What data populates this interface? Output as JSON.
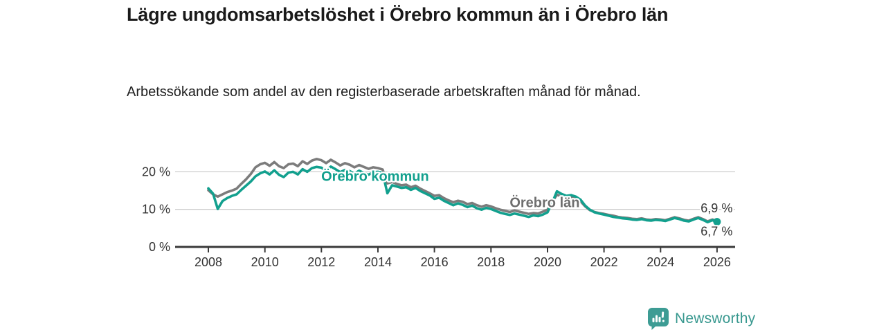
{
  "header": {
    "title": "Lägre ungdomsarbetslöshet i Örebro kommun än i Örebro län",
    "subtitle": "Arbetssökande som andel av den registerbaserade arbetskraften månad för månad."
  },
  "chart_data": {
    "type": "line",
    "title": "Lägre ungdomsarbetslöshet i Örebro kommun än i Örebro län",
    "xlabel": "",
    "ylabel": "",
    "x_start": 2008,
    "points_per_year": 6,
    "x_end": 2026,
    "ylim": [
      0,
      24
    ],
    "grid": "horizontal",
    "axis_color": "#3a3a3a",
    "grid_color": "#cccccc",
    "tick_label_color": "#333333",
    "yticks": [
      {
        "value": 0,
        "label": "0 %"
      },
      {
        "value": 10,
        "label": "10 %"
      },
      {
        "value": 20,
        "label": "20 %"
      }
    ],
    "xticks": [
      {
        "value": 2008,
        "label": "2008"
      },
      {
        "value": 2010,
        "label": "2010"
      },
      {
        "value": 2012,
        "label": "2012"
      },
      {
        "value": 2014,
        "label": "2014"
      },
      {
        "value": 2016,
        "label": "2016"
      },
      {
        "value": 2018,
        "label": "2018"
      },
      {
        "value": 2020,
        "label": "2020"
      },
      {
        "value": 2022,
        "label": "2022"
      },
      {
        "value": 2024,
        "label": "2024"
      },
      {
        "value": 2026,
        "label": "2026"
      }
    ],
    "series": [
      {
        "name": "Örebro län",
        "color": "#7c7c7c",
        "end_value": 6.9,
        "end_value_label": "6,9 %",
        "values": [
          15.1,
          14.0,
          13.4,
          14.0,
          14.6,
          15.0,
          15.5,
          16.8,
          18.0,
          19.4,
          21.2,
          22.0,
          22.4,
          21.6,
          22.6,
          21.5,
          21.0,
          22.0,
          22.2,
          21.5,
          22.8,
          22.1,
          23.0,
          23.4,
          23.1,
          22.3,
          23.2,
          22.5,
          21.7,
          22.3,
          21.9,
          21.2,
          21.8,
          21.3,
          20.8,
          21.2,
          21.0,
          20.6,
          16.9,
          17.3,
          16.8,
          16.4,
          16.6,
          15.9,
          16.3,
          15.5,
          14.9,
          14.3,
          13.6,
          13.8,
          13.0,
          12.4,
          11.9,
          12.3,
          12.0,
          11.4,
          11.7,
          11.1,
          10.7,
          11.1,
          10.8,
          10.3,
          9.9,
          9.6,
          9.3,
          9.7,
          9.4,
          9.1,
          8.8,
          9.0,
          8.9,
          9.4,
          9.9,
          12.0,
          13.9,
          13.4,
          13.0,
          13.2,
          12.9,
          12.2,
          10.8,
          9.8,
          9.3,
          9.0,
          8.8,
          8.5,
          8.3,
          8.0,
          7.8,
          7.7,
          7.5,
          7.4,
          7.6,
          7.3,
          7.2,
          7.4,
          7.3,
          7.1,
          7.5,
          7.9,
          7.6,
          7.2,
          7.0,
          7.5,
          7.9,
          7.4,
          6.8,
          7.3,
          6.9
        ]
      },
      {
        "name": "Örebro kommun",
        "color": "#12a08e",
        "end_value": 6.7,
        "end_value_label": "6,7 %",
        "values": [
          15.6,
          14.2,
          10.1,
          12.2,
          13.0,
          13.6,
          14.0,
          15.2,
          16.3,
          17.4,
          18.8,
          19.6,
          20.1,
          19.3,
          20.4,
          19.2,
          18.6,
          19.8,
          20.0,
          19.3,
          20.7,
          20.0,
          21.0,
          21.3,
          21.1,
          20.3,
          21.4,
          20.7,
          19.9,
          20.5,
          20.2,
          19.5,
          20.3,
          19.7,
          19.2,
          19.9,
          20.0,
          19.7,
          14.3,
          16.4,
          16.1,
          15.7,
          15.9,
          15.2,
          15.7,
          14.9,
          14.3,
          13.7,
          12.8,
          13.1,
          12.3,
          11.7,
          11.1,
          11.6,
          11.2,
          10.6,
          11.0,
          10.3,
          9.9,
          10.4,
          10.1,
          9.6,
          9.1,
          8.8,
          8.5,
          8.9,
          8.6,
          8.3,
          8.0,
          8.4,
          8.2,
          8.6,
          9.2,
          11.8,
          14.8,
          14.1,
          13.6,
          13.8,
          13.4,
          12.6,
          11.0,
          9.9,
          9.2,
          8.9,
          8.6,
          8.3,
          8.0,
          7.8,
          7.6,
          7.5,
          7.3,
          7.2,
          7.4,
          7.1,
          7.0,
          7.2,
          7.1,
          6.9,
          7.3,
          7.7,
          7.4,
          7.0,
          6.8,
          7.3,
          7.7,
          7.2,
          6.6,
          7.1,
          6.7
        ]
      }
    ],
    "annotations": [
      {
        "id": "series-label-orebro-kommun",
        "text": "Örebro kommun",
        "x": 2013.9,
        "y": 17.6,
        "color": "#12a08e",
        "anchor": "middle",
        "size": 20,
        "bold": true
      },
      {
        "id": "series-label-orebro-lan",
        "text": "Örebro län",
        "x": 2019.9,
        "y": 10.6,
        "color": "#6e6e6e",
        "anchor": "middle",
        "size": 20,
        "bold": true
      },
      {
        "id": "end-value-label-top",
        "text": "6,9 %",
        "x": 2025.42,
        "y": 9.25,
        "color": "#333333",
        "anchor": "start",
        "size": 18,
        "bold": false
      },
      {
        "id": "end-value-label-bottom",
        "text": "6,7 %",
        "x": 2025.42,
        "y": 3.05,
        "color": "#333333",
        "anchor": "start",
        "size": 18,
        "bold": false
      }
    ],
    "legend_position": "inline-labels"
  },
  "footer": {
    "brand": "Newsworthy",
    "brand_color": "#38988f",
    "logo_icon": "bar-chart-speech-bubble",
    "logo_bg_color": "#3d9c94",
    "logo_glyph_color": "#ffffff"
  }
}
